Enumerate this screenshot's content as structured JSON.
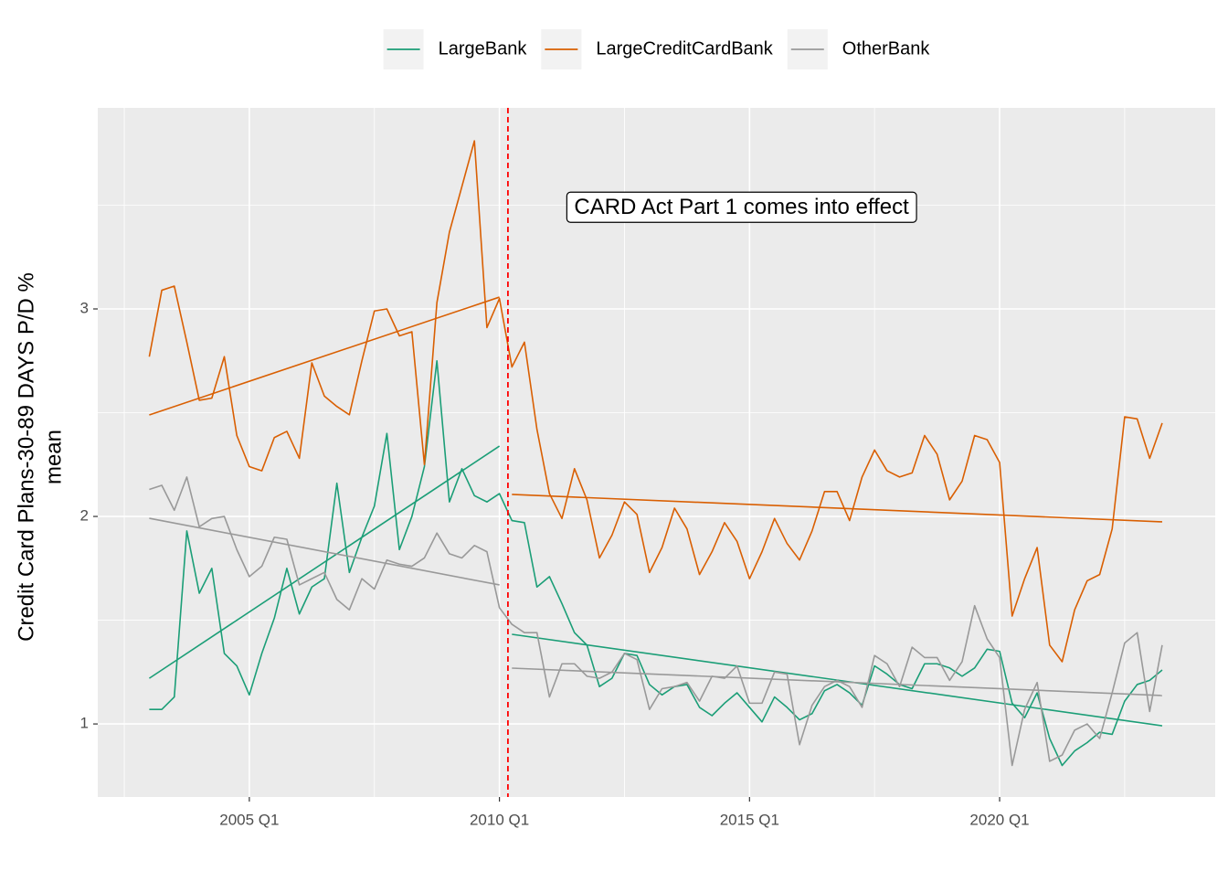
{
  "chart_data": {
    "type": "line",
    "ylabel": [
      "Credit Card Plans-30-89 DAYS P/D %",
      "mean"
    ],
    "legend": "top",
    "grid": true,
    "xlim": [
      2001.97,
      2024.31
    ],
    "ylim": [
      0.648,
      3.969
    ],
    "xticks": [
      {
        "value": 2005,
        "label": "2005 Q1"
      },
      {
        "value": 2010,
        "label": "2010 Q1"
      },
      {
        "value": 2015,
        "label": "2015 Q1"
      },
      {
        "value": 2020,
        "label": "2020 Q1"
      }
    ],
    "minor_xticks": [
      2002.5,
      2007.5,
      2012.5,
      2017.5,
      2022.5
    ],
    "yticks": [
      1,
      2,
      3
    ],
    "minor_yticks": [
      1.5,
      2.5,
      3.5
    ],
    "vline": {
      "x": 2010.17,
      "color": "#ff0000"
    },
    "annotation": {
      "text": "CARD Act Part 1 comes into effect",
      "x": 2014.84,
      "y": 3.485
    },
    "x": [
      2003,
      2003.25,
      2003.5,
      2003.75,
      2004,
      2004.25,
      2004.5,
      2004.75,
      2005,
      2005.25,
      2005.5,
      2005.75,
      2006,
      2006.25,
      2006.5,
      2006.75,
      2007,
      2007.25,
      2007.5,
      2007.75,
      2008,
      2008.25,
      2008.5,
      2008.75,
      2009,
      2009.25,
      2009.5,
      2009.75,
      2010,
      2010.25,
      2010.5,
      2010.75,
      2011,
      2011.25,
      2011.5,
      2011.75,
      2012,
      2012.25,
      2012.5,
      2012.75,
      2013,
      2013.25,
      2013.5,
      2013.75,
      2014,
      2014.25,
      2014.5,
      2014.75,
      2015,
      2015.25,
      2015.5,
      2015.75,
      2016,
      2016.25,
      2016.5,
      2016.75,
      2017,
      2017.25,
      2017.5,
      2017.75,
      2018,
      2018.25,
      2018.5,
      2018.75,
      2019,
      2019.25,
      2019.5,
      2019.75,
      2020,
      2020.25,
      2020.5,
      2020.75,
      2021,
      2021.25,
      2021.5,
      2021.75,
      2022,
      2022.25,
      2022.5,
      2022.75,
      2023,
      2023.25
    ],
    "series": [
      {
        "name": "LargeBank",
        "color": "#1b9e77",
        "values": [
          1.07,
          1.07,
          1.13,
          1.93,
          1.63,
          1.75,
          1.34,
          1.28,
          1.14,
          1.34,
          1.51,
          1.75,
          1.53,
          1.66,
          1.7,
          2.16,
          1.73,
          1.9,
          2.05,
          2.4,
          1.84,
          2.0,
          2.24,
          2.75,
          2.07,
          2.23,
          2.1,
          2.07,
          2.11,
          1.98,
          1.97,
          1.66,
          1.71,
          1.58,
          1.44,
          1.38,
          1.18,
          1.22,
          1.34,
          1.33,
          1.19,
          1.14,
          1.18,
          1.19,
          1.08,
          1.04,
          1.1,
          1.15,
          1.08,
          1.01,
          1.13,
          1.08,
          1.02,
          1.05,
          1.16,
          1.19,
          1.15,
          1.09,
          1.28,
          1.24,
          1.19,
          1.17,
          1.29,
          1.29,
          1.27,
          1.23,
          1.27,
          1.36,
          1.35,
          1.1,
          1.03,
          1.15,
          0.93,
          0.8,
          0.87,
          0.91,
          0.96,
          0.95,
          1.11,
          1.19,
          1.21,
          1.26
        ],
        "trends": [
          {
            "x": [
              2003,
              2010
            ],
            "values": [
              1.22,
              2.339
            ]
          },
          {
            "x": [
              2010.25,
              2023.25
            ],
            "values": [
              1.432,
              0.991
            ]
          }
        ]
      },
      {
        "name": "LargeCreditCardBank",
        "color": "#d95f02",
        "values": [
          2.77,
          3.09,
          3.11,
          2.84,
          2.56,
          2.57,
          2.77,
          2.39,
          2.24,
          2.22,
          2.38,
          2.41,
          2.28,
          2.74,
          2.58,
          2.53,
          2.49,
          2.75,
          2.99,
          3.0,
          2.87,
          2.89,
          2.25,
          3.03,
          3.37,
          3.59,
          3.81,
          2.91,
          3.05,
          2.72,
          2.84,
          2.42,
          2.11,
          1.99,
          2.23,
          2.08,
          1.8,
          1.91,
          2.07,
          2.01,
          1.73,
          1.85,
          2.04,
          1.94,
          1.72,
          1.83,
          1.97,
          1.88,
          1.7,
          1.83,
          1.99,
          1.87,
          1.79,
          1.93,
          2.12,
          2.12,
          1.98,
          2.19,
          2.32,
          2.22,
          2.19,
          2.21,
          2.39,
          2.3,
          2.08,
          2.17,
          2.39,
          2.37,
          2.26,
          1.52,
          1.7,
          1.85,
          1.38,
          1.3,
          1.55,
          1.69,
          1.72,
          1.94,
          2.48,
          2.47,
          2.28,
          2.45
        ],
        "trends": [
          {
            "x": [
              2003,
              2010
            ],
            "values": [
              2.489,
              3.057
            ]
          },
          {
            "x": [
              2010.25,
              2023.25
            ],
            "values": [
              2.106,
              1.974
            ]
          }
        ]
      },
      {
        "name": "OtherBank",
        "color": "#999999",
        "values": [
          2.13,
          2.15,
          2.03,
          2.19,
          1.95,
          1.99,
          2.0,
          1.84,
          1.71,
          1.76,
          1.9,
          1.89,
          1.67,
          1.7,
          1.73,
          1.6,
          1.55,
          1.7,
          1.65,
          1.79,
          1.77,
          1.76,
          1.8,
          1.92,
          1.82,
          1.8,
          1.86,
          1.83,
          1.56,
          1.48,
          1.44,
          1.44,
          1.13,
          1.29,
          1.29,
          1.23,
          1.22,
          1.25,
          1.34,
          1.31,
          1.07,
          1.17,
          1.18,
          1.2,
          1.11,
          1.23,
          1.22,
          1.28,
          1.1,
          1.1,
          1.25,
          1.24,
          0.9,
          1.09,
          1.18,
          1.21,
          1.18,
          1.08,
          1.33,
          1.29,
          1.18,
          1.37,
          1.32,
          1.32,
          1.21,
          1.3,
          1.57,
          1.41,
          1.32,
          0.8,
          1.07,
          1.2,
          0.82,
          0.85,
          0.97,
          1.0,
          0.93,
          1.15,
          1.39,
          1.44,
          1.06,
          1.38
        ],
        "trends": [
          {
            "x": [
              2003,
              2010
            ],
            "values": [
              1.991,
              1.67
            ]
          },
          {
            "x": [
              2010.25,
              2023.25
            ],
            "values": [
              1.269,
              1.137
            ]
          }
        ]
      }
    ]
  }
}
